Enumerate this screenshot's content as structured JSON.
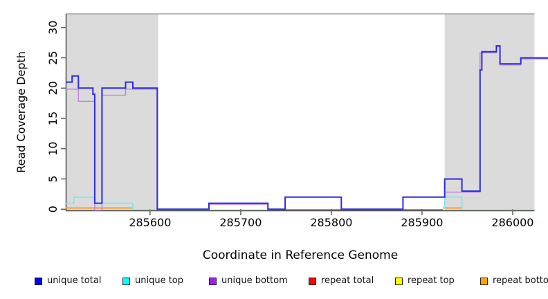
{
  "chart_data": {
    "type": "line",
    "subtype": "step-coverage-plot",
    "title": "",
    "xlabel": "Coordinate in Reference Genome",
    "ylabel": "Read Coverage Depth",
    "xlim": [
      285507,
      286024
    ],
    "ylim": [
      0,
      32.4
    ],
    "xticks": [
      285600,
      285700,
      285800,
      285900,
      286000
    ],
    "yticks": [
      0,
      5,
      10,
      15,
      20,
      25,
      30
    ],
    "grid": false,
    "shaded_regions": [
      {
        "name": "left-gray-region",
        "x0": 285507,
        "x1": 285609,
        "color": "#dbdbdb"
      },
      {
        "name": "right-gray-region",
        "x0": 285925,
        "x1": 286024,
        "color": "#dbdbdb"
      }
    ],
    "series": [
      {
        "name": "zero-baseline-blend",
        "color": "#9fd9a2",
        "width": 1.2,
        "dy": 1,
        "segments": [
          [
            [
              285581,
              0
            ],
            [
              285730,
              0
            ]
          ],
          [
            [
              285944,
              0
            ],
            [
              286024,
              0
            ]
          ]
        ]
      },
      {
        "name": "repeat total",
        "color": "#c44b5c",
        "width": 1.2,
        "dy": 0.5,
        "segments": [
          [
            [
              285730,
              0
            ],
            [
              285923,
              0
            ]
          ]
        ]
      },
      {
        "name": "repeat top",
        "color": "#ffff00",
        "width": 1,
        "dy": 2,
        "segments": []
      },
      {
        "name": "repeat bottom",
        "color": "#ff9e1f",
        "width": 2,
        "dy": -1.8,
        "segments": [
          [
            [
              285507,
              0
            ],
            [
              285581,
              0
            ]
          ],
          [
            [
              285923,
              0
            ],
            [
              285944,
              0
            ]
          ]
        ]
      },
      {
        "name": "unique top",
        "color": "#79e6ef",
        "width": 1.6,
        "dy": 0,
        "segments": [
          [
            [
              285507,
              1
            ],
            [
              285516,
              1
            ],
            [
              285516,
              2
            ],
            [
              285539,
              2
            ],
            [
              285539,
              1
            ],
            [
              285581,
              1
            ],
            [
              285581,
              0
            ]
          ],
          [
            [
              285925,
              0
            ],
            [
              285925,
              2
            ],
            [
              285944,
              2
            ],
            [
              285944,
              0
            ]
          ]
        ]
      },
      {
        "name": "unique bottom",
        "color": "#bf7fdf",
        "width": 1.4,
        "dy": 1.5,
        "segments": [
          [
            [
              285507,
              20
            ],
            [
              285521,
              20
            ],
            [
              285521,
              18
            ],
            [
              285539,
              18
            ],
            [
              285539,
              0
            ],
            [
              285547,
              0
            ],
            [
              285547,
              19
            ],
            [
              285573,
              19
            ],
            [
              285573,
              20
            ],
            [
              285608,
              20
            ],
            [
              285608,
              0
            ]
          ],
          [
            [
              285665,
              0
            ],
            [
              285665,
              1
            ],
            [
              285730,
              1
            ],
            [
              285730,
              0
            ]
          ],
          [
            [
              285925,
              3
            ],
            [
              285964,
              3
            ],
            [
              285964,
              26
            ],
            [
              285982,
              26
            ],
            [
              285982,
              27
            ],
            [
              285986,
              27
            ],
            [
              285986,
              24
            ],
            [
              286009,
              24
            ],
            [
              286009,
              25
            ],
            [
              286039,
              25
            ]
          ]
        ]
      },
      {
        "name": "unique total",
        "color": "#2b2be8",
        "width": 2,
        "dy": 0,
        "segments": [
          [
            [
              285507,
              21
            ],
            [
              285514,
              21
            ],
            [
              285514,
              22
            ],
            [
              285521,
              22
            ],
            [
              285521,
              20
            ],
            [
              285537,
              20
            ],
            [
              285537,
              19
            ],
            [
              285539,
              19
            ],
            [
              285539,
              1
            ],
            [
              285547,
              1
            ],
            [
              285547,
              20
            ],
            [
              285573,
              20
            ],
            [
              285573,
              21
            ],
            [
              285581,
              21
            ],
            [
              285581,
              20
            ],
            [
              285608,
              20
            ],
            [
              285608,
              0
            ],
            [
              285665,
              0
            ],
            [
              285665,
              1
            ],
            [
              285730,
              1
            ],
            [
              285730,
              0
            ],
            [
              285749,
              0
            ],
            [
              285749,
              2
            ],
            [
              285811,
              2
            ],
            [
              285811,
              0
            ],
            [
              285879,
              0
            ],
            [
              285879,
              2
            ],
            [
              285925,
              2
            ],
            [
              285925,
              5
            ],
            [
              285944,
              5
            ],
            [
              285944,
              3
            ],
            [
              285964,
              3
            ],
            [
              285964,
              23
            ],
            [
              285966,
              23
            ],
            [
              285966,
              26
            ],
            [
              285982,
              26
            ],
            [
              285982,
              27
            ],
            [
              285986,
              27
            ],
            [
              285986,
              24
            ],
            [
              286009,
              24
            ],
            [
              286009,
              25
            ],
            [
              286039,
              25
            ]
          ]
        ]
      }
    ],
    "legend": {
      "position": "bottom",
      "items": [
        {
          "label": "unique total",
          "color": "#0000ff"
        },
        {
          "label": "unique top",
          "color": "#00ffff"
        },
        {
          "label": "unique bottom",
          "color": "#a020f0"
        },
        {
          "label": "repeat total",
          "color": "#ff0000"
        },
        {
          "label": "repeat top",
          "color": "#ffff00"
        },
        {
          "label": "repeat bottom",
          "color": "#ffa500"
        }
      ]
    }
  }
}
